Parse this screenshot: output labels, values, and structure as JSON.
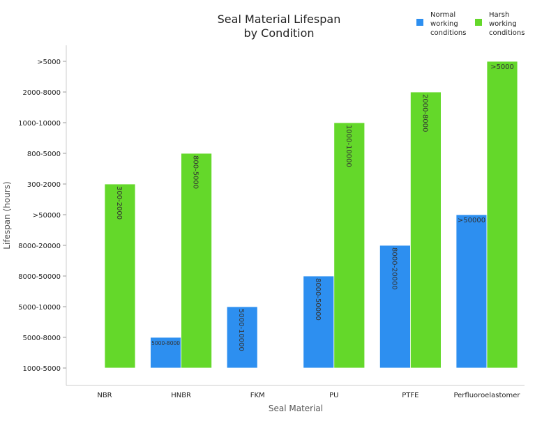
{
  "chart_data": {
    "type": "bar",
    "title_lines": [
      "Seal Material Lifespan",
      "by Condition"
    ],
    "xlabel": "Seal Material",
    "ylabel": "Lifespan (hours)",
    "y_categories": [
      "1000-5000",
      "5000-8000",
      "5000-10000",
      "8000-50000",
      "8000-20000",
      ">50000",
      "300-2000",
      "800-5000",
      "1000-10000",
      "2000-8000",
      ">5000"
    ],
    "categories": [
      "NBR",
      "HNBR",
      "FKM",
      "PU",
      "PTFE",
      "Perfluoroelastomer"
    ],
    "series": [
      {
        "name": "Normal working conditions",
        "legend_lines": [
          "Normal",
          "working",
          "conditions"
        ],
        "color": "#2d8ff0",
        "values": [
          null,
          1,
          2,
          3,
          4,
          5
        ],
        "labels": [
          null,
          "5000-8000",
          "5000-10000",
          "8000-50000",
          "8000-20000",
          ">50000"
        ]
      },
      {
        "name": "Harsh working conditions",
        "legend_lines": [
          "Harsh",
          "working",
          "conditions"
        ],
        "color": "#64d82a",
        "values": [
          6,
          7,
          null,
          8,
          9,
          10
        ],
        "labels": [
          "300-2000",
          "800-5000",
          null,
          "1000-10000",
          "2000-8000",
          ">5000"
        ]
      }
    ],
    "legend_position": "top-right",
    "grid": false
  }
}
